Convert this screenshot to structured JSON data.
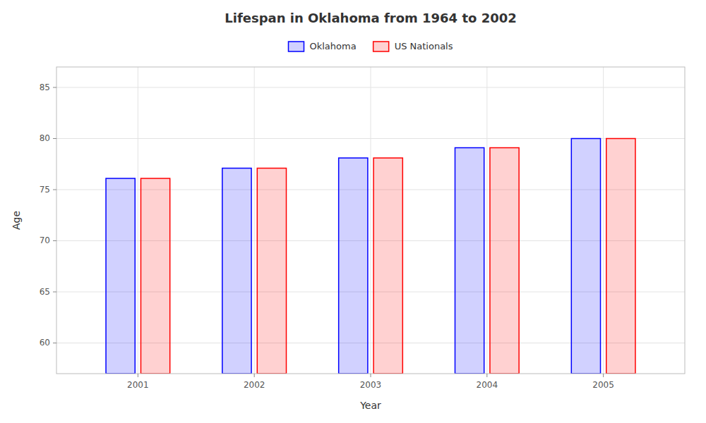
{
  "chart_data": {
    "type": "bar",
    "title": "Lifespan in Oklahoma from 1964 to 2002",
    "x_label": "Year",
    "y_label": "Age",
    "categories": [
      "2001",
      "2002",
      "2003",
      "2004",
      "2005"
    ],
    "series": [
      {
        "name": "Oklahoma",
        "color": "#0000ff",
        "values": [
          76.1,
          77.1,
          78.1,
          79.1,
          80.0
        ]
      },
      {
        "name": "US Nationals",
        "color": "#ff0000",
        "values": [
          76.1,
          77.1,
          78.1,
          79.1,
          80.0
        ]
      }
    ],
    "ylim": [
      57,
      87
    ],
    "yticks": [
      60,
      65,
      70,
      75,
      80,
      85
    ],
    "grid": true,
    "legend": "top"
  }
}
